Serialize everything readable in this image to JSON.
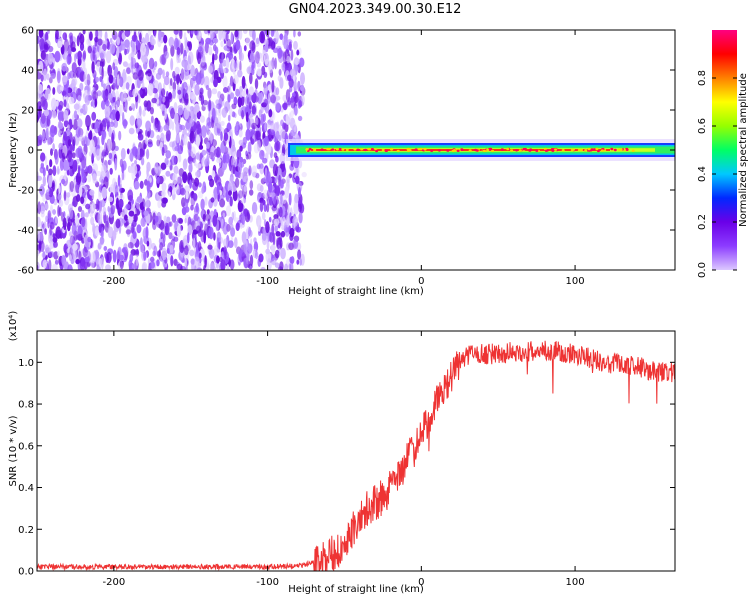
{
  "title": "GN04.2023.349.00.30.E12",
  "chart_data": [
    {
      "type": "heatmap",
      "xlabel": "Height of straight line (km)",
      "ylabel": "Frequency (Hz)",
      "xlim": [
        -250,
        165
      ],
      "ylim": [
        -60,
        60
      ],
      "xticks": [
        -200,
        -100,
        0,
        100
      ],
      "yticks": [
        -60,
        -40,
        -20,
        0,
        20,
        40,
        60
      ],
      "noise_region_x": [
        -250,
        -78
      ],
      "signal_band": {
        "x": [
          -88,
          165
        ],
        "center_freq": 0,
        "halfwidth": [
          4,
          2
        ]
      },
      "colorbar": {
        "label": "Normalized spectral amplitude",
        "range": [
          0.0,
          1.0
        ],
        "ticks": [
          "0.0",
          "0.2",
          "0.4",
          "0.6",
          "0.8"
        ],
        "colors": [
          "#dcc8ff",
          "#8c3cff",
          "#6a00e8",
          "#0028ff",
          "#00c8ff",
          "#00ff64",
          "#96ff00",
          "#ffff00",
          "#ff8000",
          "#ff0000",
          "#ff0080"
        ]
      },
      "grid": false
    },
    {
      "type": "line",
      "xlabel": "Height of straight line (km)",
      "ylabel": "SNR (10 * v/v)",
      "yscale_label": "(x10⁴)",
      "xlim": [
        -250,
        165
      ],
      "ylim": [
        0,
        1.15
      ],
      "xticks": [
        -200,
        -100,
        0,
        100
      ],
      "yticks": [
        0.0,
        0.2,
        0.4,
        0.6,
        0.8,
        1.0
      ],
      "series": [
        {
          "color": "#ee3333",
          "x": [
            -250,
            -200,
            -150,
            -100,
            -80,
            -70,
            -60,
            -55,
            -50,
            -45,
            -40,
            -35,
            -30,
            -25,
            -20,
            -15,
            -10,
            -5,
            0,
            5,
            10,
            15,
            20,
            25,
            30,
            40,
            50,
            60,
            70,
            80,
            90,
            100,
            110,
            120,
            130,
            140,
            150,
            165
          ],
          "y": [
            0.02,
            0.02,
            0.02,
            0.02,
            0.025,
            0.04,
            0.07,
            0.1,
            0.14,
            0.2,
            0.25,
            0.3,
            0.33,
            0.35,
            0.4,
            0.45,
            0.52,
            0.58,
            0.66,
            0.73,
            0.8,
            0.88,
            0.95,
            1.0,
            1.03,
            1.04,
            1.04,
            1.05,
            1.05,
            1.06,
            1.05,
            1.04,
            1.02,
            1.0,
            0.99,
            0.98,
            0.96,
            0.95
          ]
        }
      ],
      "grid": false
    }
  ]
}
